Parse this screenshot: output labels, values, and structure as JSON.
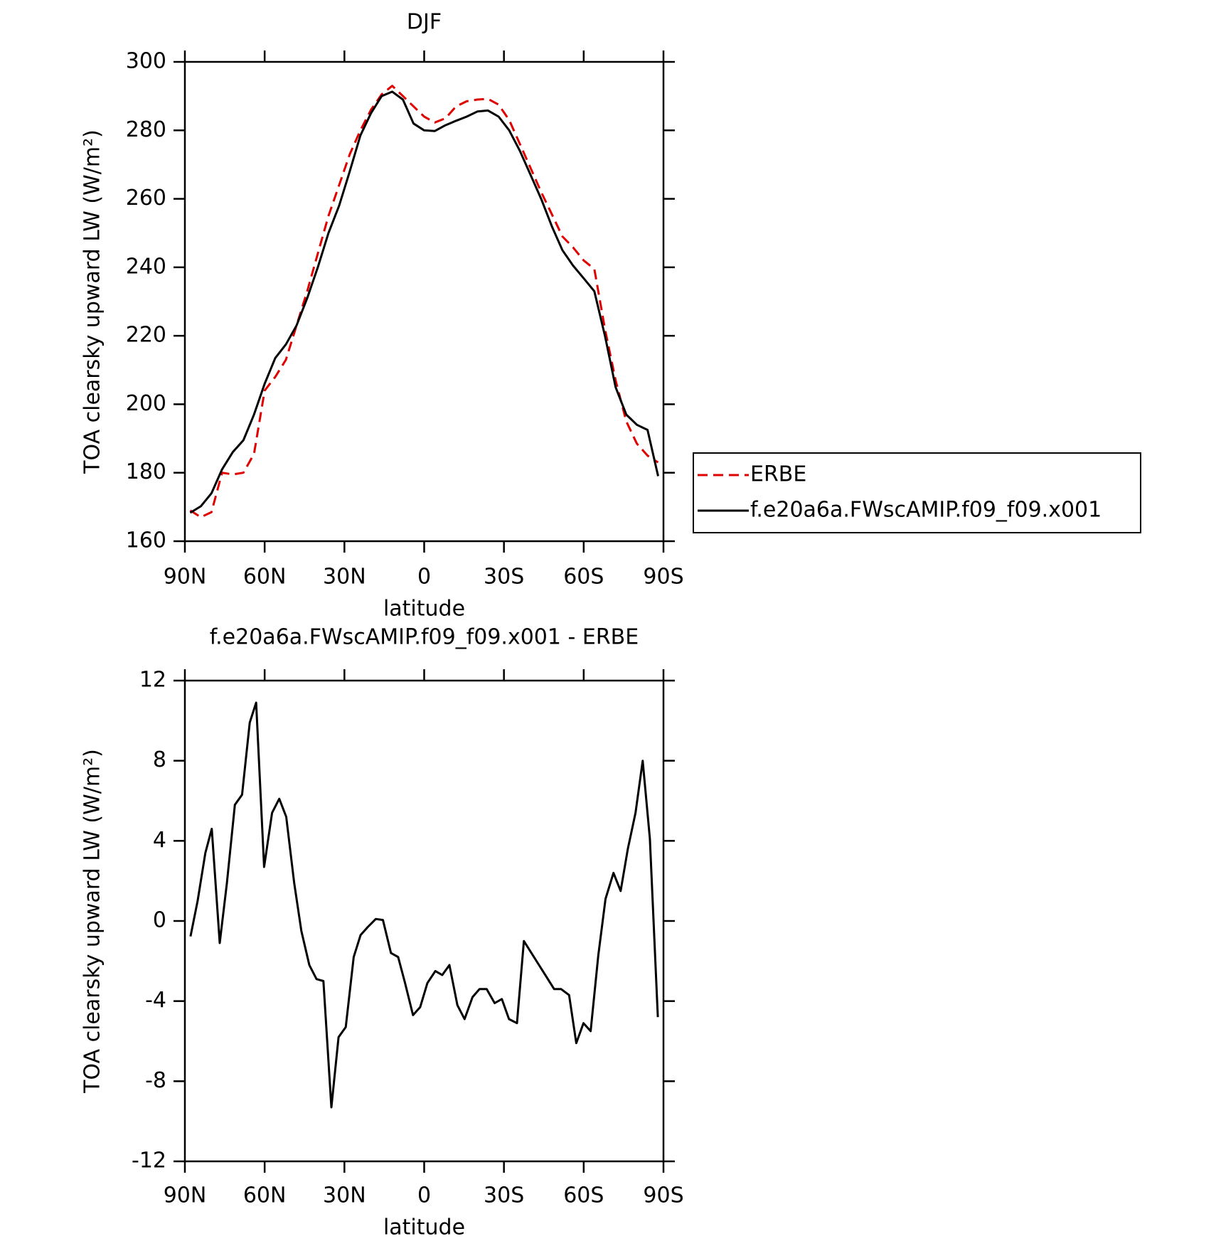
{
  "chart_data": [
    {
      "type": "line",
      "title": "DJF",
      "x_label": "latitude",
      "y_label": "TOA clearsky upward LW (W/m²)",
      "x": [
        88,
        84,
        80,
        76,
        72,
        68,
        64,
        60,
        56,
        52,
        48,
        44,
        40,
        36,
        32,
        28,
        24,
        20,
        16,
        12,
        8,
        4,
        0,
        -4,
        -8,
        -12,
        -16,
        -20,
        -24,
        -28,
        -32,
        -36,
        -40,
        -44,
        -48,
        -52,
        -56,
        -60,
        -64,
        -68,
        -72,
        -76,
        -80,
        -84,
        -88
      ],
      "series": [
        {
          "name": "ERBE",
          "color": "#e00000",
          "linestyle": "dashed",
          "values": [
            169,
            167,
            168.5,
            180,
            179.5,
            180,
            185.5,
            204,
            208,
            213,
            223,
            233,
            244,
            255,
            264,
            273,
            280,
            286,
            290.5,
            293,
            290,
            287,
            284,
            282.3,
            283.5,
            287,
            288.5,
            289,
            289.2,
            287.5,
            283,
            276,
            269,
            262,
            255.5,
            249,
            245.8,
            242,
            239.5,
            222,
            207,
            195,
            188.5,
            185,
            183
          ]
        },
        {
          "name": "f.e20a6a.FWscAMIP.f09_f09.x001",
          "color": "#000000",
          "linestyle": "solid",
          "values": [
            168.3,
            170.2,
            174,
            181,
            186,
            189.5,
            197,
            206,
            213.5,
            217.5,
            223,
            231,
            240,
            250,
            258,
            268,
            278.5,
            285,
            290,
            291.3,
            289,
            282,
            280,
            279.8,
            281.5,
            282.8,
            284,
            285.5,
            285.8,
            284,
            280,
            274,
            267,
            260,
            252,
            245,
            240.5,
            236.8,
            233,
            220,
            205,
            197,
            194,
            192.5,
            179
          ]
        }
      ],
      "xlim": [
        90,
        -90
      ],
      "xticks": [
        {
          "value": 90,
          "label": "90N"
        },
        {
          "value": 60,
          "label": "60N"
        },
        {
          "value": 30,
          "label": "30N"
        },
        0,
        {
          "value": -30,
          "label": "30S"
        },
        {
          "value": -60,
          "label": "60S"
        },
        {
          "value": -90,
          "label": "90S"
        }
      ],
      "ylim": [
        160,
        300
      ],
      "yticks": [
        160,
        180,
        200,
        220,
        240,
        260,
        280,
        300
      ],
      "legend": "right"
    },
    {
      "type": "line",
      "title": "f.e20a6a.FWscAMIP.f09_f09.x001 - ERBE",
      "x_label": "latitude",
      "y_label": "TOA clearsky upward LW (W/m²)",
      "x": [
        87.9,
        85.2,
        82.3,
        79.9,
        76.9,
        74.2,
        71.2,
        68.5,
        65.6,
        63.2,
        60.2,
        57.2,
        54.5,
        51.9,
        48.9,
        46.2,
        43.2,
        40.5,
        37.9,
        34.9,
        32.2,
        29.5,
        26.5,
        23.9,
        21.2,
        18.2,
        15.5,
        12.5,
        9.8,
        7.2,
        4.2,
        1.5,
        -1.2,
        -4.2,
        -6.8,
        -9.5,
        -12.5,
        -15.2,
        -18.2,
        -20.8,
        -23.5,
        -26.5,
        -29.2,
        -31.9,
        -34.9,
        -37.5,
        -43.2,
        -48.9,
        -51.5,
        -54.5,
        -57.2,
        -59.9,
        -62.6,
        -65.5,
        -68.2,
        -71.2,
        -73.9,
        -76.6,
        -79.5,
        -82.2,
        -84.9,
        -87.9
      ],
      "series": [
        {
          "color": "#000000",
          "linestyle": "solid",
          "values": [
            -0.77,
            1.0,
            3.4,
            4.6,
            -1.1,
            1.9,
            5.8,
            6.3,
            9.9,
            10.9,
            2.7,
            5.4,
            6.1,
            5.2,
            1.9,
            -0.5,
            -2.2,
            -2.9,
            -3.0,
            -9.3,
            -5.8,
            -5.3,
            -1.8,
            -0.7,
            -0.3,
            0.1,
            0.05,
            -1.6,
            -1.8,
            -3.1,
            -4.7,
            -4.3,
            -3.1,
            -2.5,
            -2.7,
            -2.2,
            -4.2,
            -4.9,
            -3.8,
            -3.4,
            -3.4,
            -4.1,
            -3.9,
            -4.9,
            -5.1,
            -1.0,
            -2.2,
            -3.4,
            -3.4,
            -3.7,
            -6.1,
            -5.1,
            -5.5,
            -1.7,
            1.1,
            2.4,
            1.5,
            3.6,
            5.4,
            8.0,
            4.1,
            -4.8
          ]
        }
      ],
      "xlim": [
        90,
        -90
      ],
      "xticks": [
        {
          "value": 90,
          "label": "90N"
        },
        {
          "value": 60,
          "label": "60N"
        },
        {
          "value": 30,
          "label": "30N"
        },
        0,
        {
          "value": -30,
          "label": "30S"
        },
        {
          "value": -60,
          "label": "60S"
        },
        {
          "value": -90,
          "label": "90S"
        }
      ],
      "ylim": [
        -12,
        12
      ],
      "yticks": [
        -12,
        -8,
        -4,
        0,
        4,
        8,
        12
      ]
    }
  ]
}
